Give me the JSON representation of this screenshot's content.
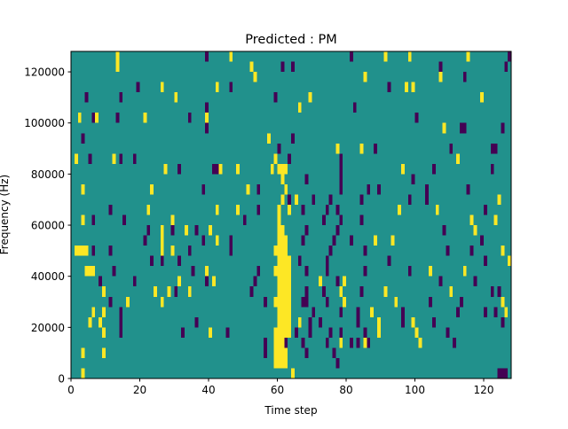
{
  "chart_data": {
    "type": "heatmap",
    "title": "Predicted : PM",
    "xlabel": "Time step",
    "ylabel": "Frequency (Hz)",
    "xlim": [
      0,
      128
    ],
    "ylim": [
      0,
      128000
    ],
    "n_time_steps": 128,
    "n_freq_bins": 32,
    "freq_bin_hz": 4000,
    "xticks": [
      0,
      20,
      40,
      60,
      80,
      100,
      120
    ],
    "xtick_labels": [
      "0",
      "20",
      "40",
      "60",
      "80",
      "100",
      "120"
    ],
    "yticks": [
      0,
      20000,
      40000,
      60000,
      80000,
      100000,
      120000
    ],
    "ytick_labels": [
      "0",
      "20000",
      "40000",
      "60000",
      "80000",
      "100000",
      "120000"
    ],
    "colors": {
      "background": "#21918c",
      "high": "#fde725",
      "low": "#440154"
    },
    "value_legend": {
      "background": 0,
      "high": 1,
      "low": -1
    },
    "high_cells": [
      [
        31,
        13,
        13
      ],
      [
        31,
        46,
        46
      ],
      [
        31,
        91,
        91
      ],
      [
        31,
        98,
        98
      ],
      [
        31,
        115,
        115
      ],
      [
        30,
        13,
        13
      ],
      [
        30,
        52,
        52
      ],
      [
        29,
        53,
        53
      ],
      [
        29,
        85,
        85
      ],
      [
        29,
        107,
        107
      ],
      [
        28,
        26,
        26
      ],
      [
        28,
        42,
        42
      ],
      [
        28,
        97,
        97
      ],
      [
        28,
        99,
        99
      ],
      [
        27,
        30,
        30
      ],
      [
        27,
        69,
        69
      ],
      [
        27,
        119,
        119
      ],
      [
        26,
        66,
        66
      ],
      [
        25,
        2,
        2
      ],
      [
        25,
        7,
        7
      ],
      [
        25,
        21,
        21
      ],
      [
        25,
        39,
        39
      ],
      [
        24,
        108,
        108
      ],
      [
        23,
        57,
        57
      ],
      [
        22,
        60,
        60
      ],
      [
        22,
        77,
        77
      ],
      [
        22,
        84,
        84
      ],
      [
        21,
        1,
        1
      ],
      [
        21,
        12,
        12
      ],
      [
        21,
        59,
        59
      ],
      [
        21,
        112,
        112
      ],
      [
        20,
        27,
        27
      ],
      [
        20,
        43,
        43
      ],
      [
        20,
        48,
        48
      ],
      [
        20,
        58,
        58
      ],
      [
        20,
        60,
        62
      ],
      [
        20,
        96,
        96
      ],
      [
        19,
        61,
        61
      ],
      [
        18,
        3,
        3
      ],
      [
        18,
        23,
        23
      ],
      [
        18,
        51,
        51
      ],
      [
        18,
        62,
        62
      ],
      [
        17,
        61,
        61
      ],
      [
        17,
        65,
        65
      ],
      [
        17,
        124,
        124
      ],
      [
        16,
        22,
        22
      ],
      [
        16,
        42,
        42
      ],
      [
        16,
        48,
        48
      ],
      [
        16,
        60,
        60
      ],
      [
        16,
        63,
        63
      ],
      [
        16,
        95,
        95
      ],
      [
        16,
        106,
        106
      ],
      [
        15,
        3,
        3
      ],
      [
        15,
        29,
        29
      ],
      [
        15,
        60,
        60
      ],
      [
        15,
        116,
        116
      ],
      [
        15,
        123,
        123
      ],
      [
        14,
        26,
        26
      ],
      [
        14,
        33,
        33
      ],
      [
        14,
        40,
        40
      ],
      [
        14,
        60,
        61
      ],
      [
        14,
        77,
        77
      ],
      [
        14,
        117,
        117
      ],
      [
        13,
        26,
        26
      ],
      [
        13,
        42,
        42
      ],
      [
        13,
        60,
        62
      ],
      [
        13,
        88,
        88
      ],
      [
        13,
        93,
        93
      ],
      [
        12,
        1,
        4
      ],
      [
        12,
        26,
        26
      ],
      [
        12,
        29,
        29
      ],
      [
        12,
        59,
        62
      ],
      [
        12,
        125,
        125
      ],
      [
        11,
        60,
        63
      ],
      [
        11,
        127,
        127
      ],
      [
        10,
        4,
        6
      ],
      [
        10,
        39,
        39
      ],
      [
        10,
        59,
        63
      ],
      [
        10,
        104,
        104
      ],
      [
        10,
        114,
        114
      ],
      [
        9,
        31,
        31
      ],
      [
        9,
        41,
        41
      ],
      [
        9,
        60,
        63
      ],
      [
        9,
        72,
        72
      ],
      [
        9,
        79,
        79
      ],
      [
        8,
        9,
        9
      ],
      [
        8,
        24,
        24
      ],
      [
        8,
        28,
        28
      ],
      [
        8,
        34,
        34
      ],
      [
        8,
        60,
        63
      ],
      [
        8,
        78,
        78
      ],
      [
        8,
        91,
        91
      ],
      [
        8,
        110,
        110
      ],
      [
        7,
        16,
        16
      ],
      [
        7,
        26,
        26
      ],
      [
        7,
        59,
        63
      ],
      [
        7,
        79,
        79
      ],
      [
        7,
        94,
        94
      ],
      [
        7,
        125,
        125
      ],
      [
        6,
        6,
        6
      ],
      [
        6,
        9,
        9
      ],
      [
        6,
        60,
        63
      ],
      [
        6,
        87,
        87
      ],
      [
        6,
        96,
        96
      ],
      [
        6,
        126,
        126
      ],
      [
        5,
        5,
        5
      ],
      [
        5,
        8,
        8
      ],
      [
        5,
        60,
        63
      ],
      [
        5,
        66,
        66
      ],
      [
        5,
        89,
        89
      ],
      [
        5,
        99,
        99
      ],
      [
        4,
        9,
        9
      ],
      [
        4,
        40,
        40
      ],
      [
        4,
        59,
        63
      ],
      [
        4,
        89,
        89
      ],
      [
        4,
        100,
        100
      ],
      [
        3,
        59,
        62
      ],
      [
        3,
        78,
        78
      ],
      [
        3,
        85,
        85
      ],
      [
        3,
        101,
        101
      ],
      [
        2,
        3,
        3
      ],
      [
        2,
        9,
        9
      ],
      [
        2,
        59,
        62
      ],
      [
        1,
        59,
        62
      ],
      [
        0,
        3,
        3
      ],
      [
        0,
        64,
        64
      ]
    ],
    "low_cells": [
      [
        31,
        39,
        39
      ],
      [
        31,
        81,
        81
      ],
      [
        31,
        127,
        127
      ],
      [
        30,
        61,
        61
      ],
      [
        30,
        64,
        64
      ],
      [
        30,
        107,
        107
      ],
      [
        30,
        126,
        126
      ],
      [
        29,
        114,
        114
      ],
      [
        28,
        19,
        19
      ],
      [
        28,
        46,
        46
      ],
      [
        28,
        92,
        92
      ],
      [
        27,
        4,
        4
      ],
      [
        27,
        14,
        14
      ],
      [
        27,
        59,
        59
      ],
      [
        26,
        39,
        39
      ],
      [
        26,
        82,
        82
      ],
      [
        25,
        6,
        6
      ],
      [
        25,
        13,
        13
      ],
      [
        25,
        34,
        34
      ],
      [
        25,
        100,
        100
      ],
      [
        24,
        39,
        39
      ],
      [
        24,
        113,
        114
      ],
      [
        24,
        125,
        125
      ],
      [
        23,
        3,
        3
      ],
      [
        23,
        64,
        64
      ],
      [
        22,
        60,
        60
      ],
      [
        22,
        88,
        88
      ],
      [
        22,
        110,
        110
      ],
      [
        22,
        122,
        123
      ],
      [
        21,
        5,
        5
      ],
      [
        21,
        14,
        14
      ],
      [
        21,
        18,
        18
      ],
      [
        21,
        63,
        63
      ],
      [
        21,
        78,
        78
      ],
      [
        20,
        31,
        31
      ],
      [
        20,
        41,
        42
      ],
      [
        20,
        78,
        78
      ],
      [
        20,
        105,
        105
      ],
      [
        20,
        122,
        122
      ],
      [
        19,
        68,
        68
      ],
      [
        19,
        78,
        78
      ],
      [
        19,
        99,
        99
      ],
      [
        18,
        38,
        38
      ],
      [
        18,
        54,
        54
      ],
      [
        18,
        78,
        78
      ],
      [
        18,
        86,
        86
      ],
      [
        18,
        89,
        89
      ],
      [
        18,
        103,
        103
      ],
      [
        18,
        115,
        115
      ],
      [
        17,
        63,
        63
      ],
      [
        17,
        70,
        70
      ],
      [
        17,
        75,
        75
      ],
      [
        17,
        84,
        84
      ],
      [
        17,
        98,
        98
      ],
      [
        17,
        103,
        103
      ],
      [
        16,
        11,
        11
      ],
      [
        16,
        54,
        54
      ],
      [
        16,
        67,
        67
      ],
      [
        16,
        74,
        74
      ],
      [
        16,
        77,
        77
      ],
      [
        16,
        120,
        120
      ],
      [
        15,
        6,
        6
      ],
      [
        15,
        15,
        15
      ],
      [
        15,
        50,
        50
      ],
      [
        15,
        73,
        73
      ],
      [
        15,
        78,
        78
      ],
      [
        15,
        84,
        84
      ],
      [
        14,
        22,
        22
      ],
      [
        14,
        29,
        29
      ],
      [
        14,
        36,
        36
      ],
      [
        14,
        68,
        68
      ],
      [
        14,
        77,
        77
      ],
      [
        14,
        108,
        108
      ],
      [
        13,
        21,
        21
      ],
      [
        13,
        38,
        38
      ],
      [
        13,
        46,
        46
      ],
      [
        13,
        67,
        67
      ],
      [
        13,
        76,
        76
      ],
      [
        13,
        81,
        81
      ],
      [
        13,
        119,
        119
      ],
      [
        12,
        6,
        6
      ],
      [
        12,
        11,
        11
      ],
      [
        12,
        34,
        34
      ],
      [
        12,
        46,
        46
      ],
      [
        12,
        75,
        75
      ],
      [
        12,
        85,
        85
      ],
      [
        12,
        109,
        109
      ],
      [
        12,
        116,
        116
      ],
      [
        11,
        23,
        23
      ],
      [
        11,
        26,
        26
      ],
      [
        11,
        31,
        31
      ],
      [
        11,
        66,
        66
      ],
      [
        11,
        74,
        74
      ],
      [
        11,
        92,
        92
      ],
      [
        11,
        120,
        120
      ],
      [
        10,
        12,
        12
      ],
      [
        10,
        35,
        35
      ],
      [
        10,
        54,
        54
      ],
      [
        10,
        68,
        68
      ],
      [
        10,
        74,
        74
      ],
      [
        10,
        85,
        85
      ],
      [
        10,
        98,
        98
      ],
      [
        9,
        8,
        8
      ],
      [
        9,
        18,
        18
      ],
      [
        9,
        39,
        39
      ],
      [
        9,
        53,
        53
      ],
      [
        9,
        77,
        77
      ],
      [
        9,
        107,
        107
      ],
      [
        9,
        117,
        117
      ],
      [
        8,
        30,
        30
      ],
      [
        8,
        52,
        52
      ],
      [
        8,
        68,
        68
      ],
      [
        8,
        73,
        73
      ],
      [
        8,
        84,
        84
      ],
      [
        8,
        122,
        122
      ],
      [
        8,
        124,
        124
      ],
      [
        7,
        11,
        11
      ],
      [
        7,
        56,
        56
      ],
      [
        7,
        67,
        68
      ],
      [
        7,
        74,
        74
      ],
      [
        7,
        104,
        104
      ],
      [
        7,
        113,
        113
      ],
      [
        6,
        14,
        14
      ],
      [
        6,
        70,
        70
      ],
      [
        6,
        78,
        78
      ],
      [
        6,
        83,
        83
      ],
      [
        6,
        96,
        96
      ],
      [
        6,
        112,
        112
      ],
      [
        6,
        120,
        120
      ],
      [
        6,
        123,
        123
      ],
      [
        5,
        14,
        14
      ],
      [
        5,
        36,
        36
      ],
      [
        5,
        69,
        69
      ],
      [
        5,
        72,
        72
      ],
      [
        5,
        83,
        83
      ],
      [
        5,
        96,
        96
      ],
      [
        5,
        105,
        105
      ],
      [
        5,
        125,
        125
      ],
      [
        4,
        14,
        14
      ],
      [
        4,
        32,
        32
      ],
      [
        4,
        45,
        45
      ],
      [
        4,
        65,
        65
      ],
      [
        4,
        69,
        69
      ],
      [
        4,
        75,
        75
      ],
      [
        4,
        78,
        78
      ],
      [
        4,
        85,
        85
      ],
      [
        4,
        109,
        109
      ],
      [
        3,
        56,
        56
      ],
      [
        3,
        62,
        62
      ],
      [
        3,
        67,
        67
      ],
      [
        3,
        74,
        74
      ],
      [
        3,
        81,
        81
      ],
      [
        3,
        83,
        83
      ],
      [
        3,
        86,
        86
      ],
      [
        3,
        111,
        111
      ],
      [
        2,
        56,
        56
      ],
      [
        2,
        68,
        68
      ],
      [
        2,
        76,
        76
      ],
      [
        1,
        77,
        77
      ],
      [
        0,
        124,
        126
      ]
    ]
  }
}
